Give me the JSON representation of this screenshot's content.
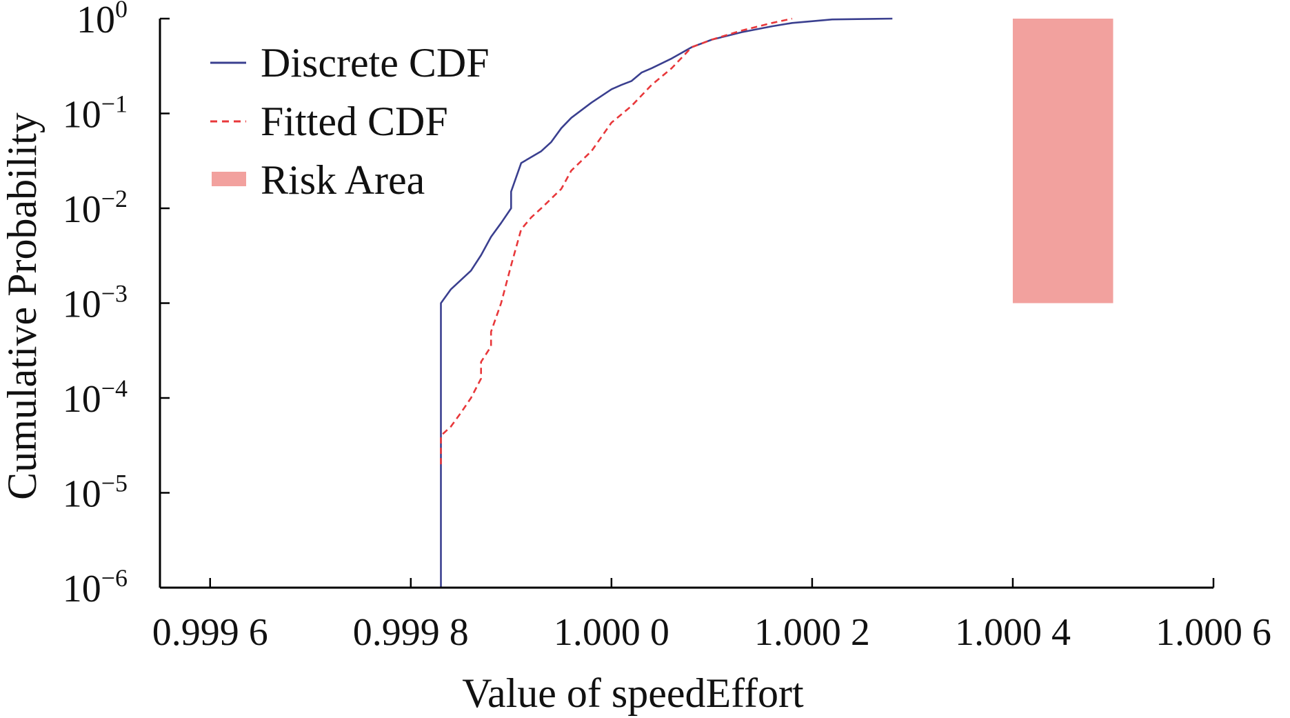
{
  "chart_data": {
    "type": "line",
    "xlabel": "Value of speedEffort",
    "ylabel": "Cumulative Probability",
    "xlim": [
      0.99955,
      1.0006
    ],
    "ylim": [
      1e-06,
      1
    ],
    "y_scale": "log",
    "x_ticks": [
      0.9996,
      0.9998,
      1.0,
      1.0002,
      1.0004,
      1.0006
    ],
    "x_tick_labels": [
      "0.999 6",
      "0.999 8",
      "1.000 0",
      "1.000 2",
      "1.000 4",
      "1.000 6"
    ],
    "y_ticks": [
      {
        "value": 1.0,
        "base": "10",
        "exp": "0"
      },
      {
        "value": 0.1,
        "base": "10",
        "exp": "−1"
      },
      {
        "value": 0.01,
        "base": "10",
        "exp": "−2"
      },
      {
        "value": 0.001,
        "base": "10",
        "exp": "−3"
      },
      {
        "value": 0.0001,
        "base": "10",
        "exp": "−4"
      },
      {
        "value": 1e-05,
        "base": "10",
        "exp": "−5"
      },
      {
        "value": 1e-06,
        "base": "10",
        "exp": "−6"
      }
    ],
    "legend": {
      "placement": "top-left",
      "entries": [
        {
          "label": "Discrete CDF",
          "style": "solid",
          "color": "#3a3f8f"
        },
        {
          "label": "Fitted CDF",
          "style": "dashed",
          "color": "#e8373a"
        },
        {
          "label": "Risk Area",
          "style": "patch",
          "color": "#f2a19e"
        }
      ]
    },
    "series": [
      {
        "name": "Discrete CDF",
        "color": "#3a3f8f",
        "style": "solid",
        "x": [
          0.99983,
          0.99983,
          0.99983,
          0.99984,
          0.99986,
          0.99987,
          0.99988,
          0.99989,
          0.9999,
          0.9999,
          0.99991,
          0.99993,
          0.99994,
          0.99995,
          0.99996,
          0.99998,
          1.0,
          1.00001,
          1.00002,
          1.00003,
          1.00004,
          1.00006,
          1.00008,
          1.0001,
          1.00013,
          1.00016,
          1.00018,
          1.00022,
          1.00028
        ],
        "y": [
          1e-06,
          0.001,
          0.001,
          0.0014,
          0.0022,
          0.0032,
          0.005,
          0.007,
          0.01,
          0.015,
          0.03,
          0.04,
          0.05,
          0.07,
          0.09,
          0.13,
          0.18,
          0.2,
          0.22,
          0.27,
          0.3,
          0.38,
          0.5,
          0.6,
          0.72,
          0.83,
          0.9,
          0.98,
          1.0
        ]
      },
      {
        "name": "Fitted CDF",
        "color": "#e8373a",
        "style": "dashed",
        "x": [
          0.99983,
          0.99983,
          0.99984,
          0.99985,
          0.99986,
          0.99987,
          0.99987,
          0.99988,
          0.99988,
          0.99989,
          0.9999,
          0.99991,
          0.99992,
          0.99993,
          0.99995,
          0.99996,
          0.99998,
          1.0,
          1.00002,
          1.00004,
          1.00006,
          1.00008,
          1.0001,
          1.00013,
          1.00016,
          1.00018
        ],
        "y": [
          2e-05,
          4e-05,
          5e-05,
          7e-05,
          0.0001,
          0.00016,
          0.00024,
          0.00035,
          0.0005,
          0.001,
          0.0025,
          0.006,
          0.008,
          0.01,
          0.016,
          0.025,
          0.04,
          0.08,
          0.12,
          0.2,
          0.3,
          0.5,
          0.6,
          0.75,
          0.9,
          1.0
        ]
      }
    ],
    "risk_area": {
      "x": [
        1.0004,
        1.0005
      ],
      "y": [
        0.001,
        1
      ]
    }
  }
}
